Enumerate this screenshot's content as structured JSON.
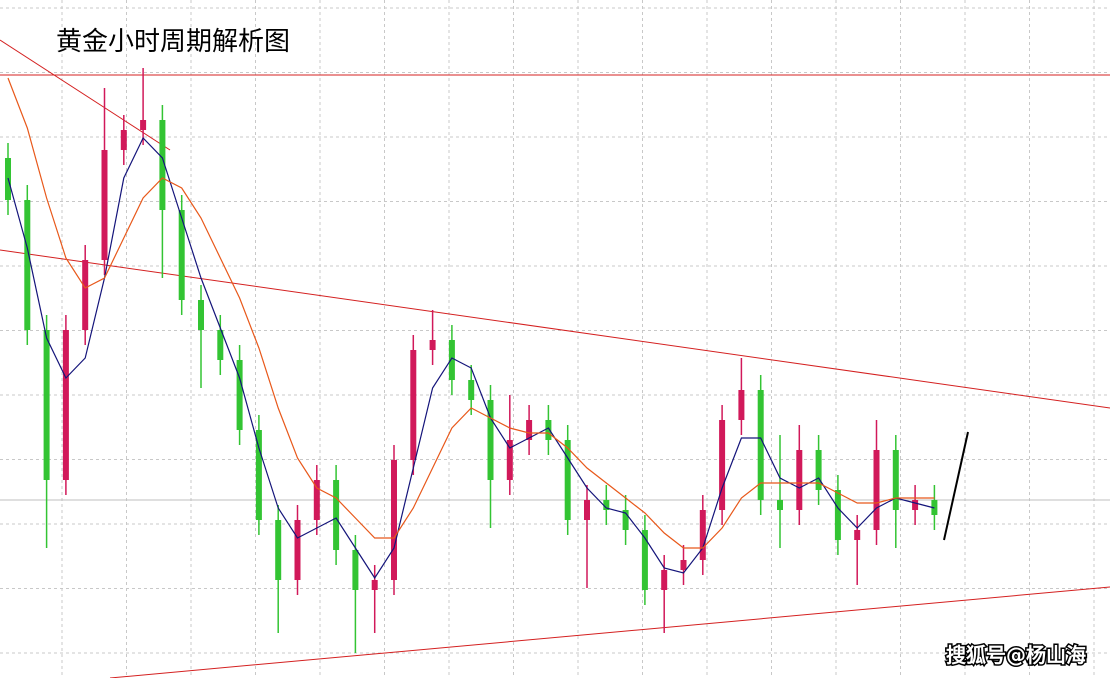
{
  "chart_data": {
    "type": "candlestick",
    "title": "黄金小时周期解析图",
    "watermark": "搜狐号@杨山海",
    "ylim": [
      0,
      678
    ],
    "up_color": "#d1195a",
    "down_color": "#33c433",
    "open": [
      520,
      478,
      348,
      198,
      348,
      418,
      528,
      548,
      558,
      468,
      378,
      348,
      318,
      248,
      158,
      98,
      158,
      198,
      128,
      88,
      98,
      218,
      328,
      338,
      298,
      278,
      198,
      238,
      258,
      238,
      158,
      178,
      168,
      148,
      88,
      108,
      118,
      168,
      258,
      288,
      178,
      168,
      228,
      188,
      138,
      148,
      228,
      168,
      178
    ],
    "high": [
      535,
      493,
      363,
      363,
      433,
      590,
      563,
      610,
      573,
      483,
      393,
      363,
      333,
      263,
      173,
      173,
      213,
      213,
      143,
      113,
      233,
      343,
      368,
      353,
      313,
      293,
      283,
      273,
      273,
      253,
      193,
      193,
      183,
      163,
      123,
      133,
      183,
      273,
      320,
      303,
      243,
      253,
      243,
      203,
      163,
      258,
      243,
      193,
      193
    ],
    "low": [
      463,
      333,
      130,
      183,
      333,
      403,
      513,
      533,
      400,
      363,
      290,
      303,
      233,
      143,
      45,
      83,
      143,
      113,
      25,
      45,
      83,
      203,
      313,
      283,
      263,
      150,
      183,
      223,
      223,
      143,
      90,
      153,
      133,
      73,
      45,
      93,
      103,
      153,
      243,
      163,
      130,
      153,
      173,
      123,
      93,
      133,
      130,
      153,
      148
    ],
    "close": [
      478,
      348,
      198,
      348,
      418,
      528,
      548,
      558,
      468,
      378,
      348,
      318,
      248,
      158,
      98,
      158,
      198,
      128,
      88,
      98,
      218,
      328,
      338,
      298,
      278,
      198,
      238,
      258,
      238,
      158,
      178,
      168,
      148,
      88,
      108,
      118,
      168,
      258,
      288,
      178,
      168,
      228,
      188,
      138,
      148,
      228,
      168,
      178,
      163
    ],
    "ma_lines": [
      {
        "color": "#14147a",
        "values": [
          500,
          430,
          340,
          300,
          320,
          400,
          500,
          540,
          520,
          460,
          400,
          350,
          300,
          230,
          170,
          140,
          150,
          160,
          130,
          100,
          130,
          210,
          290,
          320,
          310,
          260,
          230,
          240,
          250,
          220,
          190,
          170,
          165,
          140,
          110,
          105,
          130,
          190,
          240,
          240,
          200,
          190,
          200,
          170,
          150,
          170,
          180,
          175,
          170
        ]
      },
      {
        "color": "#e8581a",
        "values": [
          600,
          550,
          480,
          420,
          390,
          400,
          440,
          480,
          500,
          490,
          460,
          420,
          380,
          330,
          270,
          220,
          190,
          180,
          160,
          140,
          140,
          170,
          210,
          250,
          270,
          260,
          250,
          245,
          245,
          230,
          210,
          195,
          180,
          165,
          145,
          130,
          130,
          150,
          180,
          195,
          195,
          195,
          195,
          185,
          175,
          175,
          180,
          180,
          180
        ]
      }
    ]
  }
}
